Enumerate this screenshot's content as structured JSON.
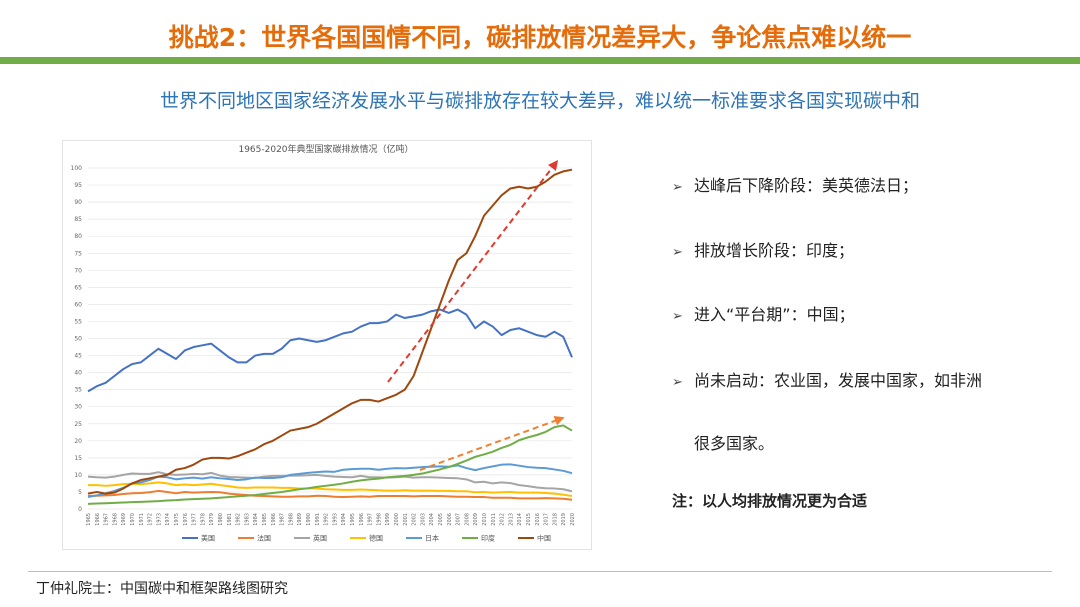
{
  "header": {
    "title": "挑战2：世界各国国情不同，碳排放情况差异大，争论焦点难以统一",
    "subtitle": "世界不同地区国家经济发展水平与碳排放存在较大差异，难以统一标准要求各国实现碳中和"
  },
  "chart_data": {
    "type": "line",
    "title": "1965-2020年典型国家碳排放情况（亿吨）",
    "categories": [
      "1965",
      "1966",
      "1967",
      "1968",
      "1969",
      "1970",
      "1971",
      "1972",
      "1973",
      "1974",
      "1975",
      "1976",
      "1977",
      "1978",
      "1979",
      "1980",
      "1981",
      "1982",
      "1983",
      "1984",
      "1985",
      "1986",
      "1987",
      "1988",
      "1989",
      "1990",
      "1991",
      "1992",
      "1993",
      "1994",
      "1995",
      "1996",
      "1997",
      "1998",
      "1999",
      "2000",
      "2001",
      "2002",
      "2003",
      "2004",
      "2005",
      "2006",
      "2007",
      "2008",
      "2009",
      "2010",
      "2011",
      "2012",
      "2013",
      "2014",
      "2015",
      "2016",
      "2017",
      "2018",
      "2019",
      "2020"
    ],
    "series": [
      {
        "name": "美国",
        "color": "#4472c4",
        "values": [
          34.5,
          36,
          37,
          39,
          41,
          42.5,
          43,
          45,
          47,
          45.5,
          44,
          46.5,
          47.5,
          48,
          48.5,
          46.5,
          44.5,
          43,
          43,
          45,
          45.5,
          45.5,
          47,
          49.5,
          50,
          49.5,
          49,
          49.5,
          50.5,
          51.5,
          52,
          53.5,
          54.5,
          54.5,
          55,
          57,
          56,
          56.5,
          57,
          58,
          58.5,
          57.5,
          58.5,
          57,
          53,
          55,
          53.5,
          51,
          52.5,
          53,
          52,
          51,
          50.5,
          52,
          50.5,
          44.5
        ]
      },
      {
        "name": "法国",
        "color": "#ed7d31",
        "values": [
          3.8,
          3.9,
          4,
          4.1,
          4.4,
          4.6,
          4.7,
          4.9,
          5.3,
          5,
          4.6,
          5,
          4.8,
          4.9,
          5,
          4.9,
          4.5,
          4.3,
          4.1,
          3.9,
          3.8,
          3.7,
          3.6,
          3.6,
          3.7,
          3.7,
          3.9,
          3.8,
          3.6,
          3.5,
          3.6,
          3.7,
          3.6,
          3.8,
          3.8,
          3.8,
          3.8,
          3.7,
          3.8,
          3.8,
          3.8,
          3.7,
          3.6,
          3.6,
          3.5,
          3.5,
          3.3,
          3.3,
          3.3,
          3.1,
          3.1,
          3.1,
          3.2,
          3.1,
          3,
          2.7
        ]
      },
      {
        "name": "英国",
        "color": "#a5a5a5",
        "values": [
          9.5,
          9.3,
          9.2,
          9.5,
          10,
          10.4,
          10.3,
          10.3,
          10.8,
          10.2,
          10,
          10.1,
          10.3,
          10.2,
          10.6,
          9.8,
          9.4,
          9.3,
          9.2,
          9.1,
          9.5,
          9.7,
          9.7,
          9.8,
          9.8,
          9.9,
          10,
          9.7,
          9.5,
          9.4,
          9.3,
          9.7,
          9.3,
          9.3,
          9.2,
          9.3,
          9.5,
          9.2,
          9.3,
          9.3,
          9.2,
          9.1,
          9,
          8.7,
          7.8,
          8,
          7.5,
          7.8,
          7.6,
          7,
          6.7,
          6.3,
          6.1,
          6,
          5.8,
          5.2
        ]
      },
      {
        "name": "德国",
        "color": "#ffc000",
        "values": [
          7,
          7,
          6.8,
          7,
          7.3,
          7.4,
          7.3,
          7.5,
          7.8,
          7.5,
          7,
          7.2,
          7,
          7.2,
          7.4,
          7,
          6.7,
          6.3,
          6.2,
          6.3,
          6.3,
          6.3,
          6.2,
          6.2,
          6,
          6,
          6,
          5.8,
          5.7,
          5.6,
          5.6,
          5.7,
          5.6,
          5.5,
          5.4,
          5.4,
          5.5,
          5.4,
          5.4,
          5.4,
          5.3,
          5.3,
          5.2,
          5.2,
          4.9,
          5,
          4.8,
          4.9,
          5,
          4.8,
          4.8,
          4.8,
          4.7,
          4.5,
          4.2,
          3.8
        ]
      },
      {
        "name": "日本",
        "color": "#5b9bd5",
        "values": [
          3.5,
          4,
          4.6,
          5.3,
          6.2,
          7.5,
          7.8,
          8.5,
          9.5,
          9.3,
          8.7,
          9,
          9.2,
          8.9,
          9.3,
          9,
          8.8,
          8.5,
          8.7,
          9.2,
          9.1,
          9.1,
          9.3,
          10,
          10.3,
          10.6,
          10.8,
          11,
          10.9,
          11.5,
          11.7,
          11.8,
          11.8,
          11.5,
          11.8,
          12,
          11.9,
          12.1,
          12.3,
          12.4,
          12.5,
          12.4,
          12.8,
          12,
          11.4,
          12,
          12.5,
          13,
          13.1,
          12.7,
          12.3,
          12.1,
          12,
          11.6,
          11.2,
          10.5
        ]
      },
      {
        "name": "印度",
        "color": "#70ad47",
        "values": [
          1.5,
          1.6,
          1.7,
          1.8,
          1.9,
          2,
          2.1,
          2.2,
          2.3,
          2.5,
          2.6,
          2.8,
          2.9,
          3,
          3.1,
          3.3,
          3.5,
          3.7,
          3.9,
          4.1,
          4.4,
          4.7,
          5,
          5.4,
          5.8,
          6.1,
          6.5,
          6.8,
          7.1,
          7.5,
          8,
          8.4,
          8.7,
          8.9,
          9.3,
          9.5,
          9.7,
          10,
          10.4,
          11,
          11.6,
          12.3,
          13.2,
          14.2,
          15.3,
          16,
          16.8,
          17.9,
          18.8,
          20.2,
          21,
          21.7,
          22.6,
          24,
          24.5,
          23
        ]
      },
      {
        "name": "中国",
        "color": "#9e480e",
        "values": [
          4.5,
          5,
          4.5,
          4.8,
          6,
          7.5,
          8.5,
          9,
          9.5,
          10,
          11.5,
          12,
          13,
          14.5,
          15,
          15,
          14.8,
          15.5,
          16.5,
          17.5,
          19,
          20,
          21.5,
          23,
          23.5,
          24,
          25,
          26.5,
          28,
          29.5,
          31,
          32,
          32,
          31.5,
          32.5,
          33.5,
          35,
          39,
          46,
          53,
          60,
          67,
          73,
          75,
          80,
          86,
          89,
          92,
          94,
          94.5,
          94,
          94.5,
          96,
          98,
          99,
          99.5
        ]
      }
    ],
    "ylim": [
      0,
      100
    ],
    "yticks": [
      0,
      5,
      10,
      15,
      20,
      25,
      30,
      35,
      40,
      45,
      50,
      55,
      60,
      65,
      70,
      75,
      80,
      85,
      90,
      95,
      100
    ],
    "grid": true,
    "legend": "bottom"
  },
  "bullets": [
    [
      "达峰后下降阶段：美英德法日；"
    ],
    [
      "排放增长阶段：印度；"
    ],
    [
      "进入“平台期”：中国；"
    ],
    [
      "尚未启动：农业国，发展中国家，如非洲",
      "很多国家。"
    ]
  ],
  "note": "注：以人均排放情况更为合适",
  "footer": "丁仲礼院士：中国碳中和框架路线图研究"
}
